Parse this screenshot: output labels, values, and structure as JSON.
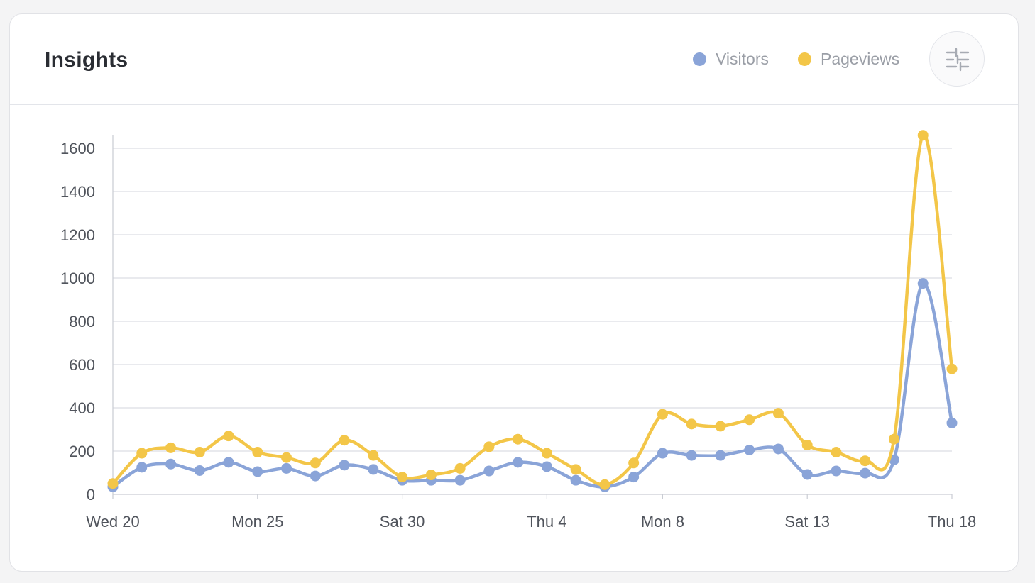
{
  "header": {
    "title": "Insights",
    "settings_icon": "sliders-icon"
  },
  "legend": [
    {
      "name": "Visitors",
      "color": "#8aa4d8"
    },
    {
      "name": "Pageviews",
      "color": "#f3c648"
    }
  ],
  "chart_data": {
    "type": "line",
    "x_tick_labels": [
      "Wed 20",
      "Mon 25",
      "Sat 30",
      "Thu 4",
      "Mon 8",
      "Sat 13",
      "Thu 18"
    ],
    "x_tick_indices": [
      0,
      5,
      10,
      15,
      19,
      24,
      29
    ],
    "ylim": [
      0,
      1600
    ],
    "y_ticks": [
      0,
      200,
      400,
      600,
      800,
      1000,
      1200,
      1400,
      1600
    ],
    "grid": true,
    "legend_position": "top-right",
    "series": [
      {
        "name": "Visitors",
        "color": "#8aa4d8",
        "values": [
          35,
          125,
          140,
          110,
          148,
          105,
          120,
          85,
          135,
          115,
          65,
          65,
          65,
          108,
          148,
          128,
          65,
          35,
          80,
          190,
          180,
          180,
          205,
          210,
          92,
          108,
          98,
          160,
          975,
          330
        ]
      },
      {
        "name": "Pageviews",
        "color": "#f3c648",
        "values": [
          50,
          190,
          215,
          195,
          270,
          195,
          170,
          145,
          250,
          180,
          80,
          90,
          120,
          220,
          255,
          190,
          115,
          45,
          145,
          370,
          325,
          315,
          345,
          375,
          228,
          195,
          155,
          255,
          1660,
          580
        ]
      }
    ]
  }
}
